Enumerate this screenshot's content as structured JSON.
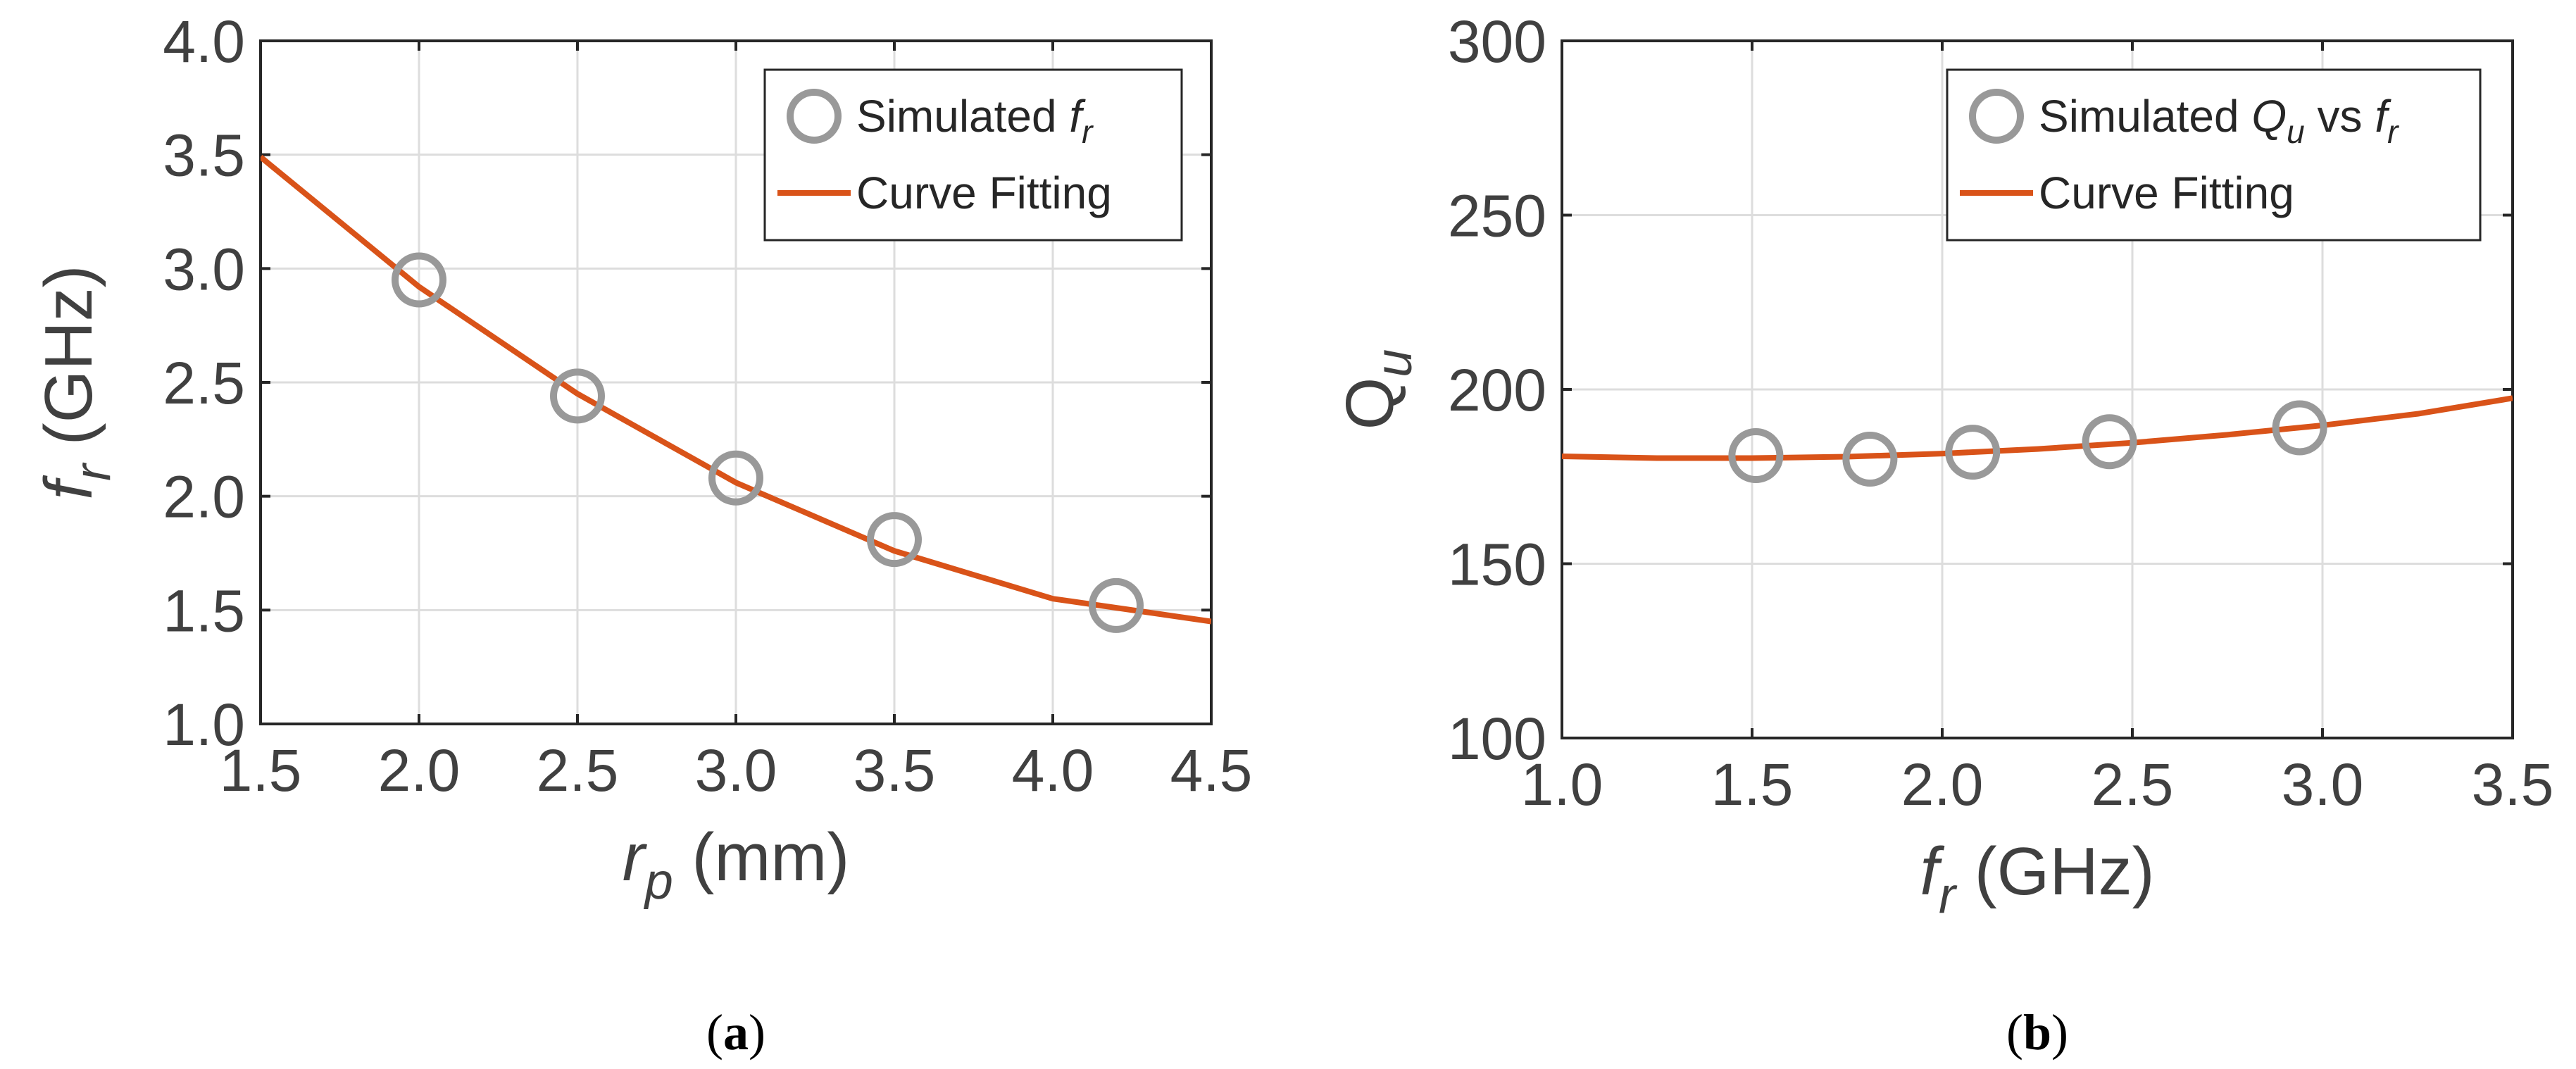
{
  "colors": {
    "marker": "#999999",
    "fit": "#d95319",
    "grid": "#dddddd",
    "axis": "#262626"
  },
  "chart_data": [
    {
      "type": "scatter",
      "panel_label": "a",
      "xlabel_main": "r",
      "xlabel_sub": "p",
      "xlabel_unit": "(mm)",
      "ylabel_main": "f",
      "ylabel_sub": "r",
      "ylabel_unit": "(GHz)",
      "xlim": [
        1.5,
        4.5
      ],
      "ylim": [
        1.0,
        4.0
      ],
      "grid": true,
      "xticks": [
        1.5,
        2.0,
        2.5,
        3.0,
        3.5,
        4.0,
        4.5
      ],
      "xtick_labels": [
        "1.5",
        "2.0",
        "2.5",
        "3.0",
        "3.5",
        "4.0",
        "4.5"
      ],
      "yticks": [
        1.0,
        1.5,
        2.0,
        2.5,
        3.0,
        3.5,
        4.0
      ],
      "ytick_labels": [
        "1.0",
        "1.5",
        "2.0",
        "2.5",
        "3.0",
        "3.5",
        "4.0"
      ],
      "legend_position": "top-right",
      "series": [
        {
          "name": "Simulated fr",
          "legend_text": "Simulated",
          "legend_italic": "f",
          "legend_sub": "r",
          "kind": "markers",
          "x": [
            2.0,
            2.5,
            3.0,
            3.5,
            4.2
          ],
          "y": [
            2.95,
            2.44,
            2.08,
            1.81,
            1.52
          ]
        },
        {
          "name": "Curve Fitting",
          "legend_text": "Curve Fitting",
          "kind": "line",
          "x": [
            1.5,
            2.0,
            2.5,
            3.0,
            3.5,
            4.0,
            4.5
          ],
          "y": [
            3.49,
            2.92,
            2.45,
            2.06,
            1.76,
            1.55,
            1.45
          ]
        }
      ]
    },
    {
      "type": "scatter",
      "panel_label": "b",
      "xlabel_main": "f",
      "xlabel_sub": "r",
      "xlabel_unit": "(GHz)",
      "ylabel_main": "Q",
      "ylabel_sub": "u",
      "xlim": [
        1.0,
        3.5
      ],
      "ylim": [
        100,
        300
      ],
      "grid": true,
      "xticks": [
        1.0,
        1.5,
        2.0,
        2.5,
        3.0,
        3.5
      ],
      "xtick_labels": [
        "1.0",
        "1.5",
        "2.0",
        "2.5",
        "3.0",
        "3.5"
      ],
      "yticks": [
        100,
        150,
        200,
        250,
        300
      ],
      "ytick_labels": [
        "100",
        "150",
        "200",
        "250",
        "300"
      ],
      "legend_position": "top-right",
      "series": [
        {
          "name": "Simulated Qu vs fr",
          "legend_text": "Simulated",
          "legend_italic": "Q",
          "legend_sub": "u",
          "legend_mid": "vs",
          "legend_italic2": "f",
          "legend_sub2": "r",
          "kind": "markers",
          "x": [
            1.51,
            1.81,
            2.08,
            2.44,
            2.94
          ],
          "y": [
            181,
            180,
            182,
            185,
            189
          ]
        },
        {
          "name": "Curve Fitting",
          "legend_text": "Curve Fitting",
          "kind": "line",
          "x": [
            1.0,
            1.25,
            1.5,
            1.75,
            2.0,
            2.25,
            2.5,
            2.75,
            3.0,
            3.25,
            3.5
          ],
          "y": [
            180.8,
            180.3,
            180.3,
            180.7,
            181.6,
            182.9,
            184.7,
            187.0,
            189.7,
            193.0,
            197.5
          ]
        }
      ]
    }
  ]
}
